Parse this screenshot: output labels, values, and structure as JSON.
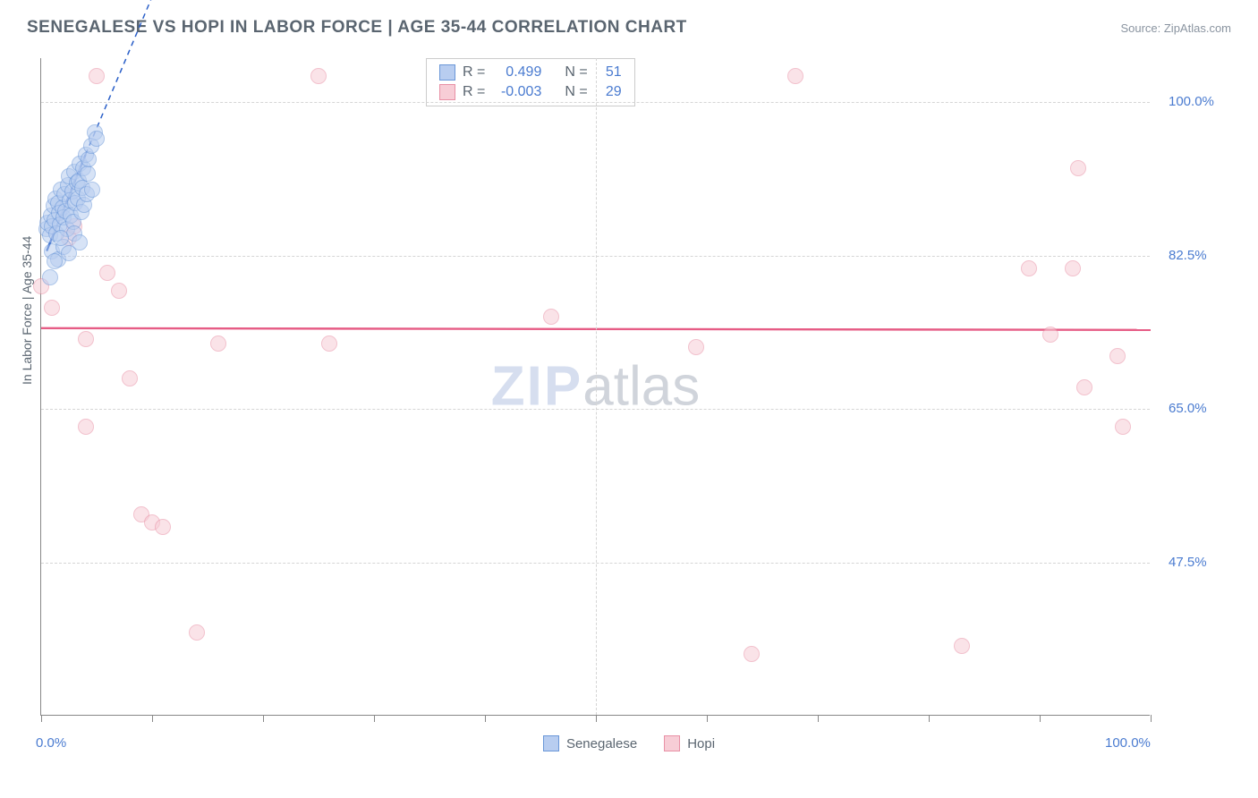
{
  "title": "SENEGALESE VS HOPI IN LABOR FORCE | AGE 35-44 CORRELATION CHART",
  "source": "Source: ZipAtlas.com",
  "y_axis_label": "In Labor Force | Age 35-44",
  "watermark": {
    "part1": "ZIP",
    "part2": "atlas"
  },
  "chart": {
    "type": "scatter",
    "background_color": "#ffffff",
    "grid_color": "#d5d5d5",
    "axis_color": "#888888",
    "text_color": "#5a6570",
    "tick_color": "#4a7bd0",
    "x_range": [
      0,
      100
    ],
    "y_range": [
      30,
      105
    ],
    "y_ticks": [
      {
        "value": 100.0,
        "label": "100.0%"
      },
      {
        "value": 82.5,
        "label": "82.5%"
      },
      {
        "value": 65.0,
        "label": "65.0%"
      },
      {
        "value": 47.5,
        "label": "47.5%"
      }
    ],
    "x_ticks_minor": [
      0,
      10,
      20,
      30,
      40,
      50,
      60,
      70,
      80,
      90,
      100
    ],
    "x_ticks_major": [
      0,
      50,
      100
    ],
    "x_labels": [
      {
        "value": 0,
        "label": "0.0%"
      },
      {
        "value": 100,
        "label": "100.0%"
      }
    ],
    "marker_radius": 9,
    "marker_stroke_width": 1.3,
    "series": {
      "senegalese": {
        "label": "Senegalese",
        "fill": "#b8cdf0",
        "stroke": "#6a97d8",
        "fill_opacity": 0.55,
        "trend": {
          "x1": 0.5,
          "y1": 83,
          "x2": 4,
          "y2": 94,
          "dash_x2": 10,
          "dash_y2": 112,
          "color": "#2a5fc8",
          "width": 2.4
        },
        "stats": {
          "R": "0.499",
          "N": "51"
        },
        "points": [
          [
            0.5,
            85.5
          ],
          [
            0.6,
            86.2
          ],
          [
            0.8,
            84.8
          ],
          [
            0.9,
            87.0
          ],
          [
            1.0,
            85.8
          ],
          [
            1.1,
            88.2
          ],
          [
            1.2,
            86.5
          ],
          [
            1.3,
            89.0
          ],
          [
            1.4,
            85.0
          ],
          [
            1.5,
            88.5
          ],
          [
            1.6,
            87.3
          ],
          [
            1.7,
            86.0
          ],
          [
            1.8,
            90.0
          ],
          [
            1.9,
            88.0
          ],
          [
            2.0,
            86.8
          ],
          [
            2.1,
            89.5
          ],
          [
            2.2,
            87.6
          ],
          [
            2.3,
            85.5
          ],
          [
            2.4,
            90.5
          ],
          [
            2.5,
            91.5
          ],
          [
            2.6,
            88.8
          ],
          [
            2.7,
            87.0
          ],
          [
            2.8,
            89.8
          ],
          [
            2.9,
            86.3
          ],
          [
            3.0,
            92.0
          ],
          [
            3.1,
            88.5
          ],
          [
            3.2,
            90.8
          ],
          [
            3.3,
            89.0
          ],
          [
            3.4,
            91.0
          ],
          [
            3.5,
            93.0
          ],
          [
            3.6,
            87.5
          ],
          [
            3.7,
            90.2
          ],
          [
            3.8,
            92.5
          ],
          [
            3.9,
            88.3
          ],
          [
            4.0,
            94.0
          ],
          [
            4.1,
            89.5
          ],
          [
            4.2,
            91.8
          ],
          [
            4.3,
            93.5
          ],
          [
            4.5,
            95.0
          ],
          [
            4.6,
            90.0
          ],
          [
            4.8,
            96.5
          ],
          [
            5.0,
            95.8
          ],
          [
            1.0,
            83.0
          ],
          [
            1.5,
            82.0
          ],
          [
            0.8,
            80.0
          ],
          [
            1.2,
            81.8
          ],
          [
            2.0,
            83.5
          ],
          [
            2.5,
            82.8
          ],
          [
            3.0,
            85.0
          ],
          [
            3.5,
            84.0
          ],
          [
            1.8,
            84.5
          ]
        ]
      },
      "hopi": {
        "label": "Hopi",
        "fill": "#f7cdd6",
        "stroke": "#e890a5",
        "fill_opacity": 0.55,
        "trend": {
          "x1": 0,
          "y1": 74.2,
          "x2": 100,
          "y2": 74.0,
          "color": "#e65c85",
          "width": 2.4
        },
        "stats": {
          "R": "-0.003",
          "N": "29"
        },
        "points": [
          [
            0,
            79
          ],
          [
            1,
            76.5
          ],
          [
            2.5,
            84.5
          ],
          [
            3,
            85.8
          ],
          [
            5,
            103
          ],
          [
            6,
            80.5
          ],
          [
            7,
            78.5
          ],
          [
            4,
            73
          ],
          [
            8,
            68.5
          ],
          [
            4,
            63
          ],
          [
            9,
            53
          ],
          [
            10,
            52
          ],
          [
            11,
            51.5
          ],
          [
            14,
            39.5
          ],
          [
            16,
            72.5
          ],
          [
            25,
            103
          ],
          [
            26,
            72.5
          ],
          [
            46,
            75.5
          ],
          [
            59,
            72
          ],
          [
            64,
            37
          ],
          [
            68,
            103
          ],
          [
            83,
            38
          ],
          [
            89,
            81
          ],
          [
            91,
            73.5
          ],
          [
            93,
            81
          ],
          [
            93.5,
            92.5
          ],
          [
            94,
            67.5
          ],
          [
            97,
            71
          ],
          [
            97.5,
            63
          ]
        ]
      }
    }
  },
  "stats_labels": {
    "r_eq": "R =",
    "n_eq": "N ="
  },
  "legend": {
    "items": [
      {
        "key": "senegalese",
        "label": "Senegalese"
      },
      {
        "key": "hopi",
        "label": "Hopi"
      }
    ]
  }
}
